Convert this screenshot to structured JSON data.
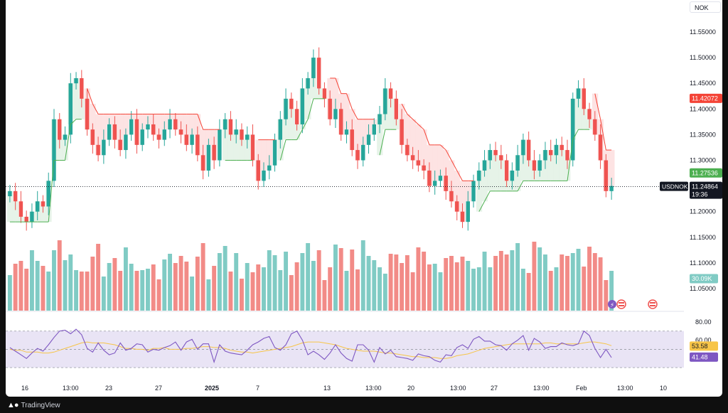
{
  "header": {
    "currency_label": "NOK"
  },
  "footer": {
    "brand": "TradingView"
  },
  "colors": {
    "up": "#26a69a",
    "down": "#ef5350",
    "vol_up": "#80cbc4",
    "vol_down": "#f28b87",
    "st_up": "#4caf50",
    "st_down": "#f44336",
    "rsi": "#7e57c2",
    "rsi_ma": "#f7c548",
    "rsi_band": "#e9e4f5"
  },
  "price_axis": {
    "ticks": [
      "11.55000",
      "11.50000",
      "11.45000",
      "11.40000",
      "11.35000",
      "11.30000",
      "11.25000",
      "11.20000",
      "11.15000",
      "11.10000",
      "11.05000"
    ],
    "tick_values": [
      11.55,
      11.5,
      11.45,
      11.4,
      11.35,
      11.3,
      11.25,
      11.2,
      11.15,
      11.1,
      11.05
    ]
  },
  "rsi_axis": {
    "ticks": [
      "80.00",
      "60.00"
    ]
  },
  "time_axis": {
    "labels": [
      "16",
      "13:00",
      "23",
      "27",
      "2025",
      "7",
      "13",
      "13:00",
      "20",
      "13:00",
      "27",
      "13:00",
      "Feb",
      "13:00",
      "10"
    ]
  },
  "labels": {
    "supertrend_down": "11.42072",
    "supertrend_up": "11.27536",
    "symbol": "USDNOK",
    "last_price": "11.24864",
    "countdown": "19:36",
    "volume": "30.09K",
    "rsi_ma": "53.58",
    "rsi": "41.48"
  },
  "chart_data": {
    "type": "candlestick",
    "symbol": "USDNOK",
    "price_range": [
      11.0,
      11.56
    ],
    "last_price": 11.24864,
    "supertrend": {
      "up_level": 11.27536,
      "down_level": 11.42072
    },
    "price_path": [
      11.24,
      11.22,
      11.19,
      11.18,
      11.2,
      11.22,
      11.21,
      11.26,
      11.38,
      11.34,
      11.35,
      11.45,
      11.46,
      11.42,
      11.36,
      11.33,
      11.31,
      11.34,
      11.37,
      11.34,
      11.32,
      11.35,
      11.38,
      11.33,
      11.36,
      11.37,
      11.35,
      11.34,
      11.36,
      11.38,
      11.36,
      11.35,
      11.33,
      11.35,
      11.31,
      11.28,
      11.33,
      11.3,
      11.36,
      11.38,
      11.35,
      11.36,
      11.34,
      11.35,
      11.3,
      11.26,
      11.28,
      11.29,
      11.34,
      11.38,
      11.42,
      11.4,
      11.37,
      11.44,
      11.46,
      11.5,
      11.44,
      11.42,
      11.38,
      11.4,
      11.35,
      11.36,
      11.32,
      11.3,
      11.33,
      11.35,
      11.37,
      11.39,
      11.44,
      11.42,
      11.38,
      11.33,
      11.31,
      11.3,
      11.29,
      11.28,
      11.25,
      11.26,
      11.27,
      11.24,
      11.22,
      11.2,
      11.18,
      11.22,
      11.26,
      11.28,
      11.3,
      11.32,
      11.31,
      11.3,
      11.26,
      11.28,
      11.31,
      11.34,
      11.3,
      11.28,
      11.3,
      11.32,
      11.31,
      11.33,
      11.32,
      11.3,
      11.42,
      11.44,
      11.4,
      11.38,
      11.35,
      11.3,
      11.24,
      11.25
    ],
    "volume_range": [
      0,
      110
    ],
    "volume": [
      50,
      66,
      70,
      59,
      85,
      70,
      63,
      55,
      85,
      99,
      71,
      79,
      57,
      55,
      55,
      76,
      94,
      48,
      67,
      74,
      56,
      89,
      66,
      56,
      57,
      59,
      65,
      44,
      72,
      80,
      67,
      77,
      69,
      48,
      76,
      95,
      44,
      63,
      81,
      91,
      55,
      81,
      45,
      67,
      54,
      65,
      61,
      85,
      78,
      57,
      83,
      50,
      68,
      81,
      95,
      70,
      85,
      43,
      61,
      93,
      88,
      56,
      86,
      58,
      99,
      77,
      71,
      61,
      52,
      80,
      79,
      67,
      78,
      54,
      89,
      83,
      65,
      66,
      54,
      74,
      77,
      68,
      76,
      70,
      59,
      61,
      83,
      61,
      77,
      84,
      79,
      85,
      95,
      59,
      53,
      97,
      89,
      79,
      56,
      61,
      79,
      77,
      81,
      87,
      62,
      90,
      81,
      75,
      43,
      56
    ],
    "rsi_range": [
      20,
      90
    ],
    "rsi_levels": [
      70,
      50,
      30
    ],
    "rsi_values": [
      52,
      48,
      44,
      40,
      46,
      51,
      48,
      55,
      63,
      70,
      71,
      67,
      72,
      66,
      51,
      47,
      57,
      49,
      44,
      46,
      57,
      49,
      51,
      56,
      55,
      47,
      50,
      49,
      52,
      54,
      58,
      49,
      58,
      61,
      50,
      56,
      56,
      36,
      55,
      48,
      46,
      45,
      44,
      49,
      55,
      58,
      62,
      64,
      52,
      49,
      55,
      67,
      70,
      60,
      44,
      48,
      44,
      39,
      46,
      55,
      46,
      40,
      37,
      55,
      55,
      49,
      36,
      52,
      45,
      49,
      42,
      41,
      40,
      38,
      45,
      43,
      42,
      38,
      36,
      44,
      43,
      52,
      55,
      51,
      61,
      64,
      59,
      59,
      55,
      54,
      49,
      56,
      60,
      65,
      49,
      62,
      58,
      51,
      53,
      53,
      57,
      55,
      54,
      56,
      70,
      65,
      51,
      41,
      50,
      41
    ],
    "rsi_ma_values": [
      50,
      49,
      49,
      47,
      47,
      47,
      46,
      46,
      47,
      49,
      51,
      53,
      55,
      57,
      58,
      57,
      57,
      57,
      56,
      55,
      53,
      51,
      51,
      50,
      50,
      49,
      51,
      51,
      52,
      50,
      50,
      50,
      51,
      51,
      52,
      53,
      53,
      52,
      52,
      51,
      49,
      48,
      47,
      47,
      46,
      47,
      48,
      49,
      50,
      51,
      52,
      53,
      55,
      57,
      58,
      58,
      58,
      57,
      56,
      55,
      53,
      51,
      50,
      49,
      48,
      48,
      48,
      47,
      46,
      46,
      45,
      44,
      43,
      42,
      42,
      41,
      41,
      41,
      40,
      40,
      41,
      43,
      44,
      45,
      47,
      49,
      51,
      52,
      53,
      54,
      55,
      56,
      56,
      56,
      56,
      56,
      56,
      57,
      57,
      56,
      56,
      56,
      56,
      56,
      57,
      58,
      58,
      57,
      56,
      54
    ],
    "last_rsi": 41.48,
    "last_rsi_ma": 53.58,
    "last_volume": "30.09K",
    "x_labels": [
      "16",
      "13:00",
      "23",
      "27",
      "2025",
      "7",
      "13",
      "13:00",
      "20",
      "13:00",
      "27",
      "13:00",
      "Feb",
      "13:00",
      "10"
    ]
  }
}
